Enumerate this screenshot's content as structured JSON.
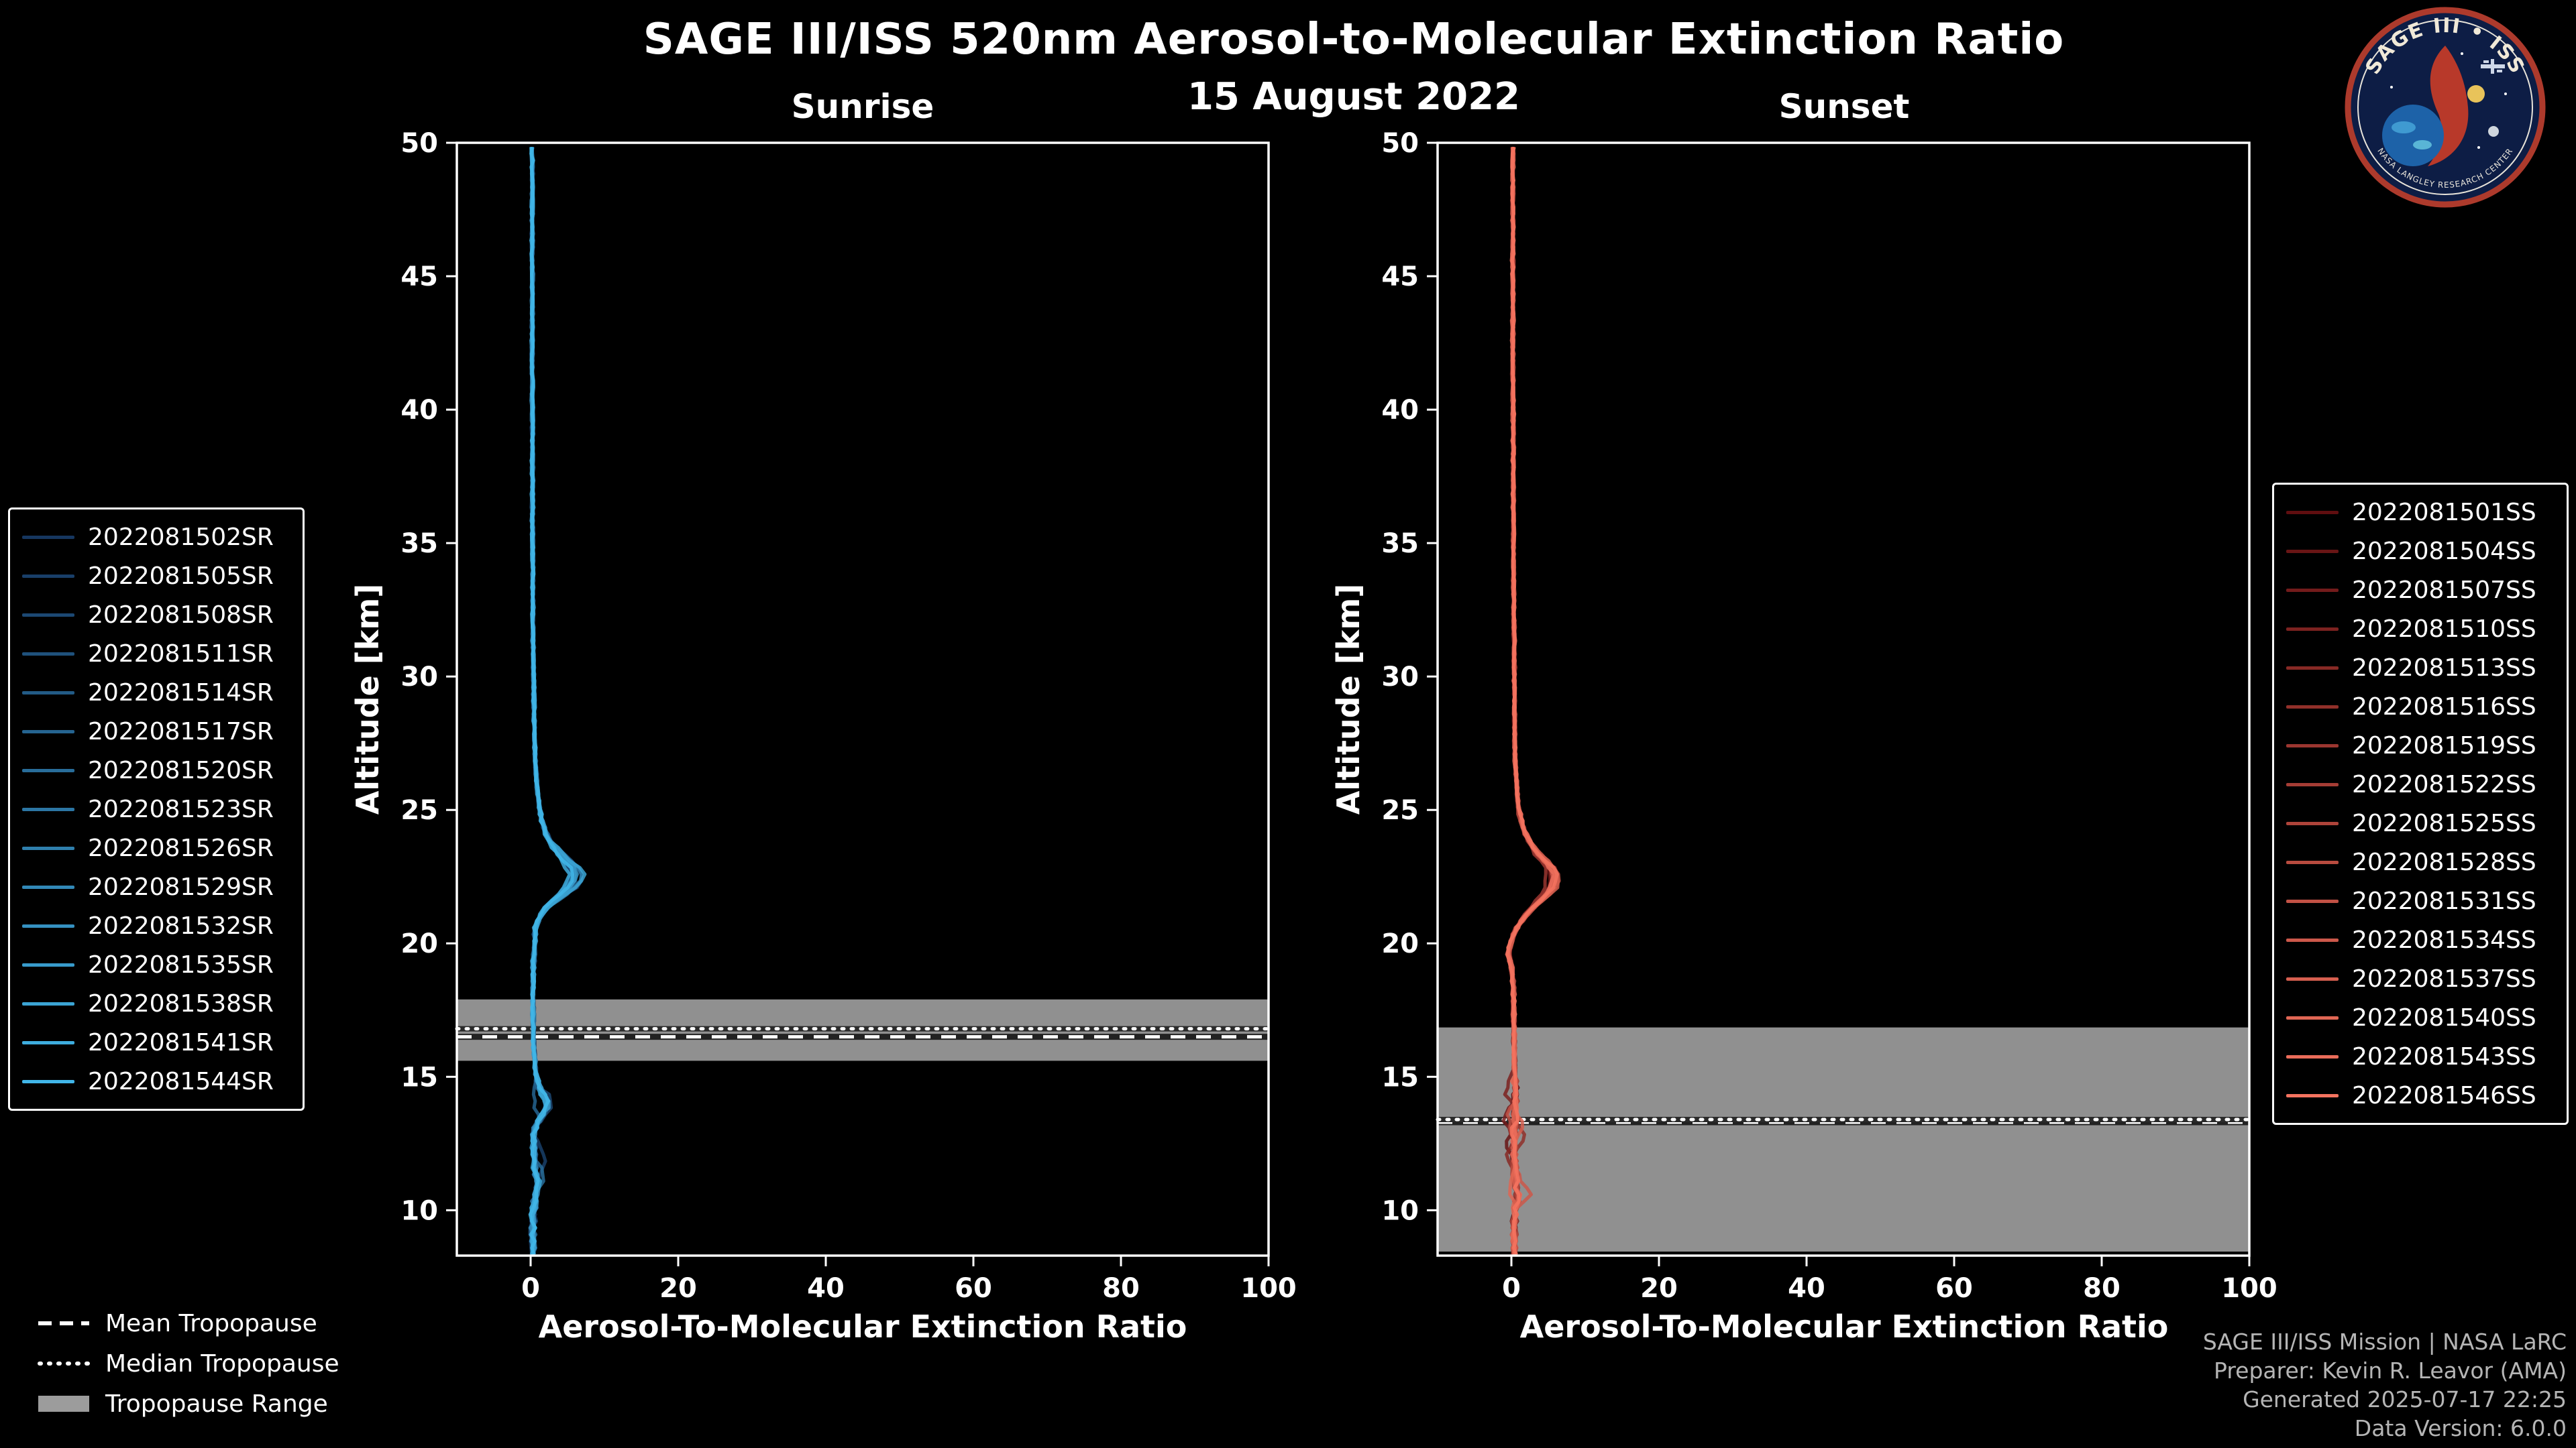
{
  "header": {
    "title": "SAGE III/ISS 520nm Aerosol-to-Molecular Extinction Ratio",
    "date": "15 August 2022"
  },
  "logo": {
    "title": "SAGE III • ISS",
    "ring_text": "NASA LANGLEY RESEARCH CENTER"
  },
  "tropopause_legend": {
    "mean": "Mean Tropopause",
    "median": "Median Tropopause",
    "range": "Tropopause Range"
  },
  "footer": {
    "lines": [
      "SAGE III/ISS Mission | NASA LaRC",
      "Preparer: Kevin R. Leavor (AMA)",
      "Generated 2025-07-17 22:25",
      "Data Version: 6.0.0"
    ]
  },
  "colors": {
    "background": "#000000",
    "axis": "#ffffff",
    "muted_text": "#b5b5b5"
  },
  "chart_data": [
    {
      "type": "line",
      "title": "Sunrise",
      "xlabel": "Aerosol-To-Molecular Extinction Ratio",
      "ylabel": "Altitude [km]",
      "xlim": [
        -10,
        100
      ],
      "ylim": [
        8.3,
        50
      ],
      "xticks": [
        0,
        20,
        40,
        60,
        80,
        100
      ],
      "yticks": [
        10,
        15,
        20,
        25,
        30,
        35,
        40,
        45,
        50
      ],
      "legend_position": "outside-left",
      "grid": false,
      "color_start": "#16365f",
      "color_end": "#41b6e8",
      "band_color": "#9c9c9c",
      "series_names": [
        "2022081502SR",
        "2022081505SR",
        "2022081508SR",
        "2022081511SR",
        "2022081514SR",
        "2022081517SR",
        "2022081520SR",
        "2022081523SR",
        "2022081526SR",
        "2022081529SR",
        "2022081532SR",
        "2022081535SR",
        "2022081538SR",
        "2022081541SR",
        "2022081544SR"
      ],
      "tropopause": {
        "mean_km": 16.5,
        "median_km": 16.8,
        "range_km": [
          15.6,
          17.9
        ]
      },
      "mean_profile": {
        "altitude_km": [
          8.3,
          8.6,
          9.0,
          9.5,
          10.0,
          10.5,
          11.0,
          11.5,
          12.0,
          12.5,
          13.0,
          13.3,
          13.6,
          13.9,
          14.2,
          14.5,
          15.0,
          15.5,
          16.0,
          16.5,
          17.0,
          18.0,
          19.0,
          19.5,
          20.0,
          20.5,
          20.8,
          21.0,
          21.3,
          21.6,
          21.9,
          22.2,
          22.5,
          22.8,
          23.0,
          23.3,
          23.6,
          24.0,
          24.5,
          25.0,
          26.0,
          27.0,
          28.0,
          30.0,
          32.0,
          34.0,
          36.0,
          38.0,
          40.0,
          42.0,
          44.0,
          46.0,
          48.0,
          50.0
        ],
        "ratio": [
          0.3,
          0.3,
          0.3,
          0.3,
          0.4,
          0.6,
          1.0,
          0.6,
          0.4,
          0.5,
          0.6,
          0.9,
          1.6,
          2.3,
          1.9,
          1.3,
          0.8,
          0.6,
          0.45,
          0.4,
          0.35,
          0.3,
          0.35,
          0.4,
          0.6,
          0.6,
          0.9,
          1.3,
          2.0,
          3.2,
          4.6,
          5.8,
          6.3,
          5.9,
          5.2,
          4.2,
          3.2,
          2.3,
          1.6,
          1.2,
          0.8,
          0.6,
          0.5,
          0.4,
          0.3,
          0.3,
          0.25,
          0.25,
          0.25,
          0.2,
          0.25,
          0.2,
          0.25,
          0.2
        ]
      }
    },
    {
      "type": "line",
      "title": "Sunset",
      "xlabel": "Aerosol-To-Molecular Extinction Ratio",
      "ylabel": "Altitude [km]",
      "xlim": [
        -10,
        100
      ],
      "ylim": [
        8.3,
        50
      ],
      "xticks": [
        0,
        20,
        40,
        60,
        80,
        100
      ],
      "yticks": [
        10,
        15,
        20,
        25,
        30,
        35,
        40,
        45,
        50
      ],
      "legend_position": "outside-right",
      "grid": false,
      "color_start": "#5f0e10",
      "color_end": "#f4735f",
      "band_color": "#9c9c9c",
      "series_names": [
        "2022081501SS",
        "2022081504SS",
        "2022081507SS",
        "2022081510SS",
        "2022081513SS",
        "2022081516SS",
        "2022081519SS",
        "2022081522SS",
        "2022081525SS",
        "2022081528SS",
        "2022081531SS",
        "2022081534SS",
        "2022081537SS",
        "2022081540SS",
        "2022081543SS",
        "2022081546SS"
      ],
      "tropopause": {
        "mean_km": 13.3,
        "median_km": 13.4,
        "range_km": [
          8.45,
          16.85
        ]
      },
      "mean_profile": {
        "altitude_km": [
          8.3,
          8.6,
          9.0,
          9.5,
          10.0,
          10.5,
          11.0,
          11.5,
          12.0,
          12.5,
          13.0,
          13.5,
          14.0,
          14.5,
          15.0,
          15.5,
          16.0,
          16.5,
          17.0,
          18.0,
          18.6,
          19.2,
          19.6,
          20.0,
          20.4,
          20.7,
          21.0,
          21.3,
          21.6,
          21.9,
          22.2,
          22.5,
          22.8,
          23.0,
          23.3,
          23.6,
          24.0,
          24.5,
          25.0,
          26.0,
          27.0,
          28.0,
          30.0,
          32.0,
          34.0,
          36.0,
          38.0,
          40.0,
          42.0,
          44.0,
          46.0,
          48.0,
          50.0
        ],
        "ratio": [
          0.4,
          0.4,
          0.4,
          0.4,
          0.5,
          0.9,
          0.6,
          0.5,
          0.4,
          0.4,
          0.45,
          0.5,
          0.5,
          0.5,
          0.45,
          0.4,
          0.4,
          0.35,
          0.35,
          0.3,
          0.2,
          0.0,
          -0.4,
          -0.1,
          0.4,
          1.0,
          1.8,
          2.8,
          3.9,
          5.0,
          5.7,
          5.9,
          5.4,
          4.8,
          3.8,
          2.9,
          2.1,
          1.4,
          1.0,
          0.7,
          0.5,
          0.45,
          0.4,
          0.35,
          0.3,
          0.3,
          0.25,
          0.25,
          0.2,
          0.2,
          0.2,
          0.2,
          0.2
        ]
      }
    }
  ]
}
